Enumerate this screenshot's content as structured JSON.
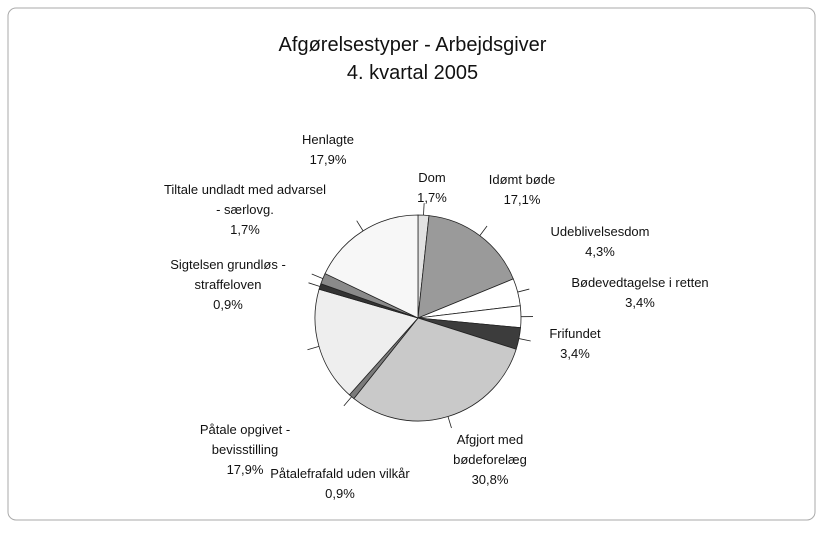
{
  "chart_data": {
    "type": "pie",
    "title": "Afgørelsestyper - Arbejdsgiver",
    "subtitle": "4. kvartal 2005",
    "categories": [
      "Dom",
      "Idømt bøde",
      "Udeblivelsesdom",
      "Bødevedtagelse i retten",
      "Frifundet",
      "Afgjort med bødeforelæg",
      "Påtalefrafald uden vilkår",
      "Påtale opgivet - bevisstilling",
      "Sigtelsen grundløs - straffeloven",
      "Tiltale undladt med advarsel - særlovg.",
      "Henlagte"
    ],
    "values": [
      1.7,
      17.1,
      4.3,
      3.4,
      3.4,
      30.8,
      0.9,
      17.9,
      0.9,
      1.7,
      17.9
    ],
    "value_labels": [
      "1,7%",
      "17,1%",
      "4,3%",
      "3,4%",
      "3,4%",
      "30,8%",
      "0,9%",
      "17,9%",
      "0,9%",
      "1,7%",
      "17,9%"
    ],
    "colors": [
      "#e2e2e2",
      "#9a9a9a",
      "#ffffff",
      "#ffffff",
      "#3c3c3c",
      "#c9c9c9",
      "#7a7a7a",
      "#eeeeee",
      "#333333",
      "#8a8a8a",
      "#f7f7f7"
    ]
  }
}
